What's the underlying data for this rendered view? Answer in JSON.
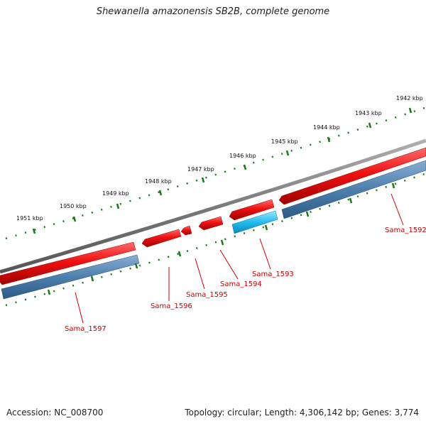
{
  "title": "Shewanella amazonensis SB2B, complete genome",
  "footer": {
    "accession_label": "Accession:",
    "accession": "NC_008700",
    "topology_label": "Topology:",
    "topology": "circular",
    "length_label": "Length:",
    "length": "4,306,142 bp",
    "genes_label": "Genes:",
    "genes": "3,774"
  },
  "kbp_ticks": [
    "1951 kbp",
    "1950 kbp",
    "1949 kbp",
    "1948 kbp",
    "1947 kbp",
    "1946 kbp",
    "1945 kbp",
    "1944 kbp",
    "1943 kbp",
    "1942 kbp"
  ],
  "genes": [
    {
      "name": "Sama_1592",
      "strand": "-"
    },
    {
      "name": "Sama_1593",
      "strand": "+"
    },
    {
      "name": "Sama_1594",
      "strand": "-"
    },
    {
      "name": "Sama_1595",
      "strand": "-"
    },
    {
      "name": "Sama_1596",
      "strand": "-"
    },
    {
      "name": "Sama_1597",
      "strand": "-"
    }
  ],
  "colors": {
    "backbone": "#7a7a7a",
    "cds_forward": "#ee1111",
    "cds_reverse": "#2244cc",
    "gene_bar": "#4d7fae",
    "gene_bar_hi": "#22bbee",
    "tick": "#1a7a1a",
    "label": "#cc0000"
  }
}
